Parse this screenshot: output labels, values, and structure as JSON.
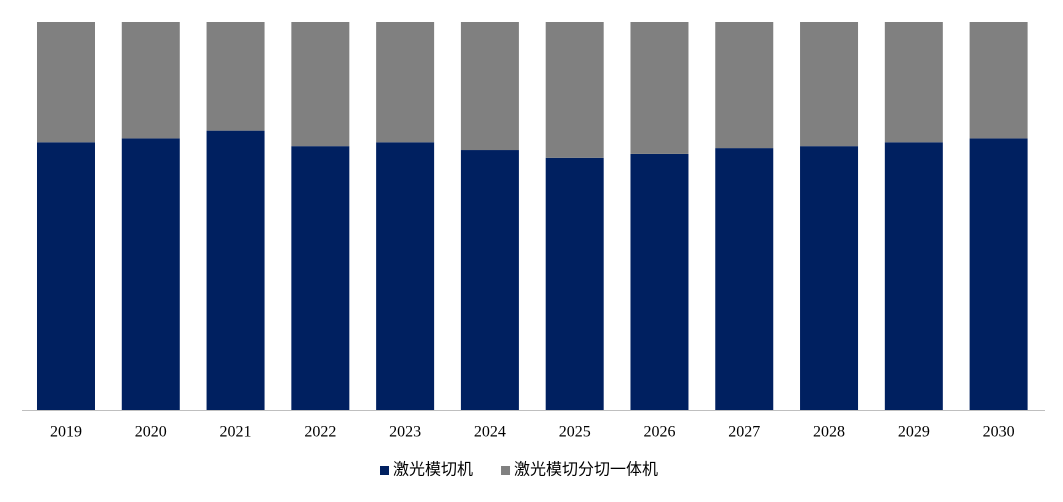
{
  "chart_data": {
    "type": "stacked_bar_100",
    "categories": [
      "2019",
      "2020",
      "2021",
      "2022",
      "2023",
      "2024",
      "2025",
      "2026",
      "2027",
      "2028",
      "2029",
      "2030"
    ],
    "series": [
      {
        "name": "激光模切机",
        "color": "#002060",
        "values": [
          69,
          70,
          72,
          68,
          69,
          67,
          65,
          66,
          67.5,
          68,
          69,
          70
        ]
      },
      {
        "name": "激光模切分切一体机",
        "color": "#808080",
        "values": [
          31,
          30,
          28,
          32,
          31,
          33,
          35,
          34,
          32.5,
          32,
          31,
          30
        ]
      }
    ],
    "ylim": [
      0,
      100
    ]
  }
}
